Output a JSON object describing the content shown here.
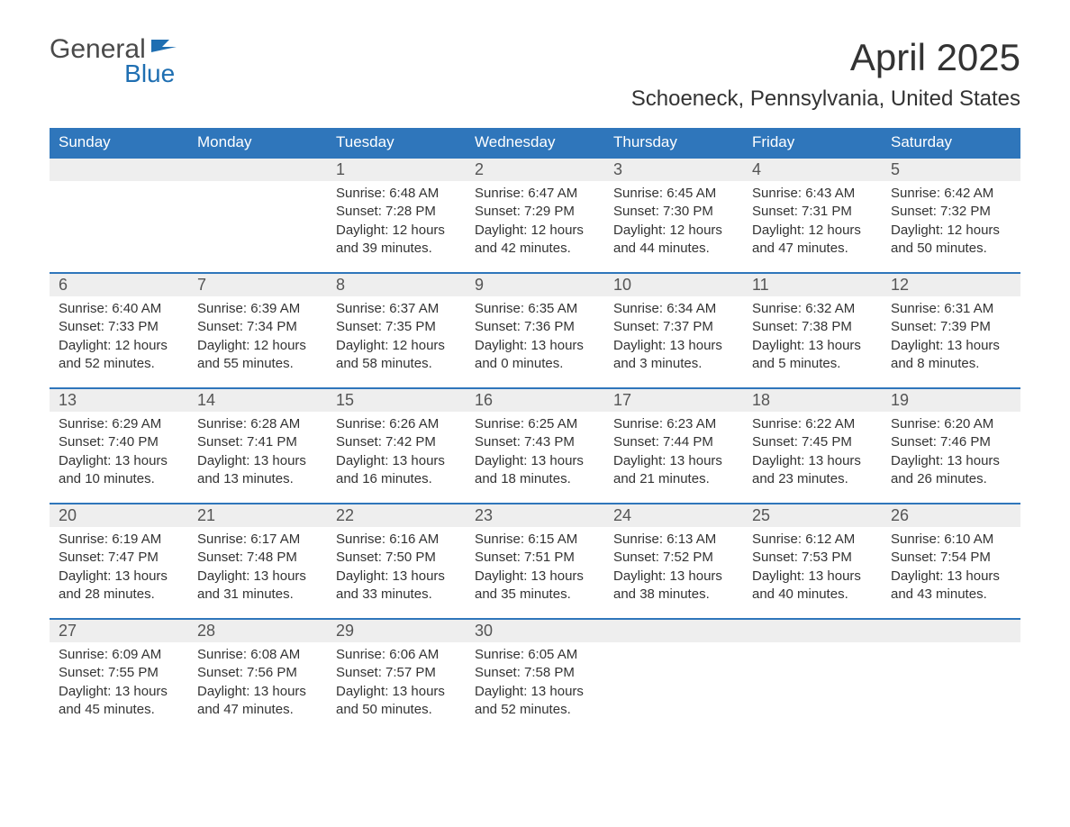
{
  "logo": {
    "general": "General",
    "blue": "Blue",
    "flag_color": "#1f6fb2"
  },
  "title": "April 2025",
  "location": "Schoeneck, Pennsylvania, United States",
  "colors": {
    "header_bg": "#2f76bb",
    "header_text": "#ffffff",
    "daynum_bg": "#eeeeee",
    "border": "#2f76bb",
    "text": "#333333"
  },
  "daynames": [
    "Sunday",
    "Monday",
    "Tuesday",
    "Wednesday",
    "Thursday",
    "Friday",
    "Saturday"
  ],
  "weeks": [
    [
      {
        "n": "",
        "sunrise": "",
        "sunset": "",
        "daylight": ""
      },
      {
        "n": "",
        "sunrise": "",
        "sunset": "",
        "daylight": ""
      },
      {
        "n": "1",
        "sunrise": "Sunrise: 6:48 AM",
        "sunset": "Sunset: 7:28 PM",
        "daylight": "Daylight: 12 hours and 39 minutes."
      },
      {
        "n": "2",
        "sunrise": "Sunrise: 6:47 AM",
        "sunset": "Sunset: 7:29 PM",
        "daylight": "Daylight: 12 hours and 42 minutes."
      },
      {
        "n": "3",
        "sunrise": "Sunrise: 6:45 AM",
        "sunset": "Sunset: 7:30 PM",
        "daylight": "Daylight: 12 hours and 44 minutes."
      },
      {
        "n": "4",
        "sunrise": "Sunrise: 6:43 AM",
        "sunset": "Sunset: 7:31 PM",
        "daylight": "Daylight: 12 hours and 47 minutes."
      },
      {
        "n": "5",
        "sunrise": "Sunrise: 6:42 AM",
        "sunset": "Sunset: 7:32 PM",
        "daylight": "Daylight: 12 hours and 50 minutes."
      }
    ],
    [
      {
        "n": "6",
        "sunrise": "Sunrise: 6:40 AM",
        "sunset": "Sunset: 7:33 PM",
        "daylight": "Daylight: 12 hours and 52 minutes."
      },
      {
        "n": "7",
        "sunrise": "Sunrise: 6:39 AM",
        "sunset": "Sunset: 7:34 PM",
        "daylight": "Daylight: 12 hours and 55 minutes."
      },
      {
        "n": "8",
        "sunrise": "Sunrise: 6:37 AM",
        "sunset": "Sunset: 7:35 PM",
        "daylight": "Daylight: 12 hours and 58 minutes."
      },
      {
        "n": "9",
        "sunrise": "Sunrise: 6:35 AM",
        "sunset": "Sunset: 7:36 PM",
        "daylight": "Daylight: 13 hours and 0 minutes."
      },
      {
        "n": "10",
        "sunrise": "Sunrise: 6:34 AM",
        "sunset": "Sunset: 7:37 PM",
        "daylight": "Daylight: 13 hours and 3 minutes."
      },
      {
        "n": "11",
        "sunrise": "Sunrise: 6:32 AM",
        "sunset": "Sunset: 7:38 PM",
        "daylight": "Daylight: 13 hours and 5 minutes."
      },
      {
        "n": "12",
        "sunrise": "Sunrise: 6:31 AM",
        "sunset": "Sunset: 7:39 PM",
        "daylight": "Daylight: 13 hours and 8 minutes."
      }
    ],
    [
      {
        "n": "13",
        "sunrise": "Sunrise: 6:29 AM",
        "sunset": "Sunset: 7:40 PM",
        "daylight": "Daylight: 13 hours and 10 minutes."
      },
      {
        "n": "14",
        "sunrise": "Sunrise: 6:28 AM",
        "sunset": "Sunset: 7:41 PM",
        "daylight": "Daylight: 13 hours and 13 minutes."
      },
      {
        "n": "15",
        "sunrise": "Sunrise: 6:26 AM",
        "sunset": "Sunset: 7:42 PM",
        "daylight": "Daylight: 13 hours and 16 minutes."
      },
      {
        "n": "16",
        "sunrise": "Sunrise: 6:25 AM",
        "sunset": "Sunset: 7:43 PM",
        "daylight": "Daylight: 13 hours and 18 minutes."
      },
      {
        "n": "17",
        "sunrise": "Sunrise: 6:23 AM",
        "sunset": "Sunset: 7:44 PM",
        "daylight": "Daylight: 13 hours and 21 minutes."
      },
      {
        "n": "18",
        "sunrise": "Sunrise: 6:22 AM",
        "sunset": "Sunset: 7:45 PM",
        "daylight": "Daylight: 13 hours and 23 minutes."
      },
      {
        "n": "19",
        "sunrise": "Sunrise: 6:20 AM",
        "sunset": "Sunset: 7:46 PM",
        "daylight": "Daylight: 13 hours and 26 minutes."
      }
    ],
    [
      {
        "n": "20",
        "sunrise": "Sunrise: 6:19 AM",
        "sunset": "Sunset: 7:47 PM",
        "daylight": "Daylight: 13 hours and 28 minutes."
      },
      {
        "n": "21",
        "sunrise": "Sunrise: 6:17 AM",
        "sunset": "Sunset: 7:48 PM",
        "daylight": "Daylight: 13 hours and 31 minutes."
      },
      {
        "n": "22",
        "sunrise": "Sunrise: 6:16 AM",
        "sunset": "Sunset: 7:50 PM",
        "daylight": "Daylight: 13 hours and 33 minutes."
      },
      {
        "n": "23",
        "sunrise": "Sunrise: 6:15 AM",
        "sunset": "Sunset: 7:51 PM",
        "daylight": "Daylight: 13 hours and 35 minutes."
      },
      {
        "n": "24",
        "sunrise": "Sunrise: 6:13 AM",
        "sunset": "Sunset: 7:52 PM",
        "daylight": "Daylight: 13 hours and 38 minutes."
      },
      {
        "n": "25",
        "sunrise": "Sunrise: 6:12 AM",
        "sunset": "Sunset: 7:53 PM",
        "daylight": "Daylight: 13 hours and 40 minutes."
      },
      {
        "n": "26",
        "sunrise": "Sunrise: 6:10 AM",
        "sunset": "Sunset: 7:54 PM",
        "daylight": "Daylight: 13 hours and 43 minutes."
      }
    ],
    [
      {
        "n": "27",
        "sunrise": "Sunrise: 6:09 AM",
        "sunset": "Sunset: 7:55 PM",
        "daylight": "Daylight: 13 hours and 45 minutes."
      },
      {
        "n": "28",
        "sunrise": "Sunrise: 6:08 AM",
        "sunset": "Sunset: 7:56 PM",
        "daylight": "Daylight: 13 hours and 47 minutes."
      },
      {
        "n": "29",
        "sunrise": "Sunrise: 6:06 AM",
        "sunset": "Sunset: 7:57 PM",
        "daylight": "Daylight: 13 hours and 50 minutes."
      },
      {
        "n": "30",
        "sunrise": "Sunrise: 6:05 AM",
        "sunset": "Sunset: 7:58 PM",
        "daylight": "Daylight: 13 hours and 52 minutes."
      },
      {
        "n": "",
        "sunrise": "",
        "sunset": "",
        "daylight": ""
      },
      {
        "n": "",
        "sunrise": "",
        "sunset": "",
        "daylight": ""
      },
      {
        "n": "",
        "sunrise": "",
        "sunset": "",
        "daylight": ""
      }
    ]
  ]
}
